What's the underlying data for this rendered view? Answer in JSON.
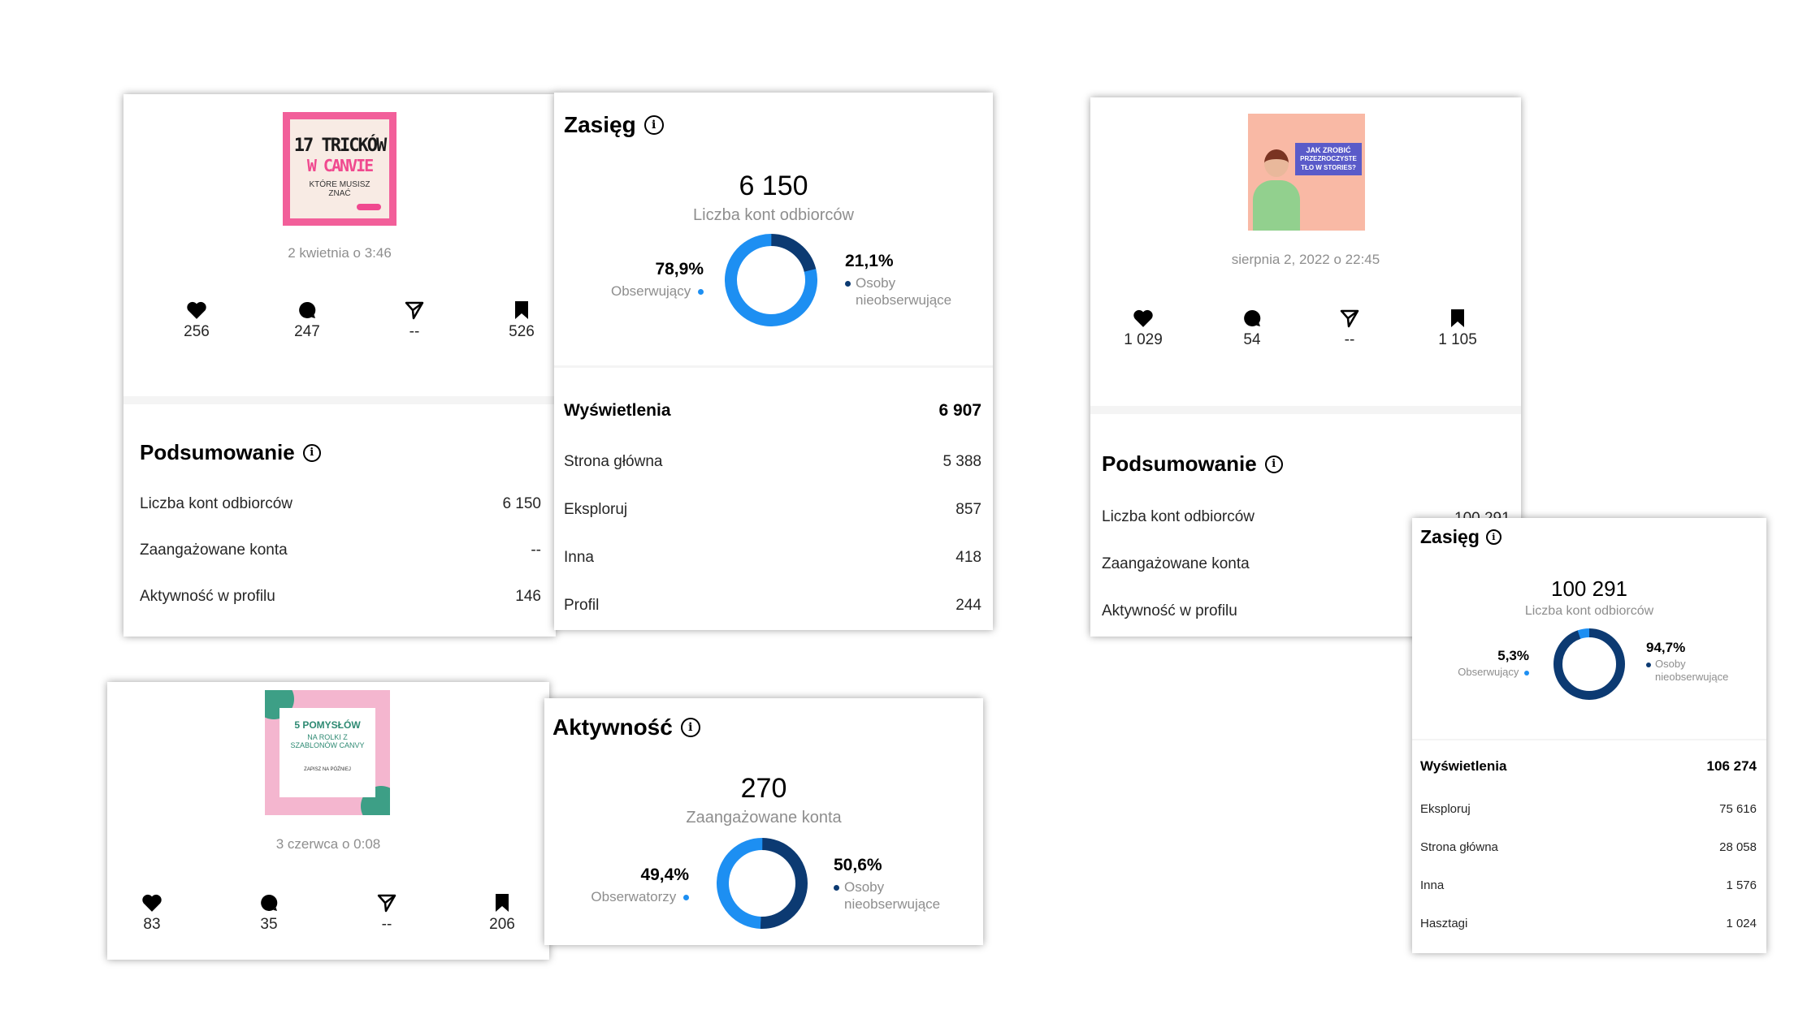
{
  "colors": {
    "light_blue": "#1d8ff2",
    "dark_blue": "#0c3a72"
  },
  "post1": {
    "thumb": {
      "line1": "17 TRICKÓW",
      "line2": "W CANVIE",
      "line3": "KTÓRE MUSISZ",
      "line4": "ZNAĆ"
    },
    "date": "2 kwietnia o 3:46",
    "stats": {
      "likes": "256",
      "comments": "247",
      "shares": "--",
      "saves": "526"
    },
    "summary": {
      "title": "Podsumowanie",
      "rows": [
        {
          "label": "Liczba kont odbiorców",
          "value": "6 150"
        },
        {
          "label": "Zaangażowane konta",
          "value": "--"
        },
        {
          "label": "Aktywność w profilu",
          "value": "146"
        }
      ]
    }
  },
  "reach1": {
    "title": "Zasięg",
    "total": "6 150",
    "total_label": "Liczba kont odbiorców",
    "followers_pct": "78,9%",
    "followers_label": "Obserwujący",
    "followers_fraction": 0.789,
    "nonfollowers_pct": "21,1%",
    "nonfollowers_label_1": "Osoby",
    "nonfollowers_label_2": "nieobserwujące",
    "views_label": "Wyświetlenia",
    "views_total": "6 907",
    "sources": [
      {
        "label": "Strona główna",
        "value": "5 388"
      },
      {
        "label": "Eksploruj",
        "value": "857"
      },
      {
        "label": "Inna",
        "value": "418"
      },
      {
        "label": "Profil",
        "value": "244"
      }
    ]
  },
  "post2": {
    "thumb": {
      "line1": "JAK ZROBIĆ",
      "line2": "PRZEZROCZYSTE",
      "line3": "TŁO W STORIES?"
    },
    "date": "sierpnia 2, 2022 o 22:45",
    "stats": {
      "likes": "1 029",
      "comments": "54",
      "shares": "--",
      "saves": "1 105"
    },
    "summary": {
      "title": "Podsumowanie",
      "partial_value": "100 291",
      "rows": [
        {
          "label": "Liczba kont odbiorców"
        },
        {
          "label": "Zaangażowane konta"
        },
        {
          "label": "Aktywność w profilu"
        }
      ]
    }
  },
  "reach2": {
    "title": "Zasięg",
    "total": "100 291",
    "total_label": "Liczba kont odbiorców",
    "followers_pct": "5,3%",
    "followers_label": "Obserwujący",
    "followers_fraction": 0.053,
    "nonfollowers_pct": "94,7%",
    "nonfollowers_label_1": "Osoby",
    "nonfollowers_label_2": "nieobserwujące",
    "views_label": "Wyświetlenia",
    "views_total": "106 274",
    "sources": [
      {
        "label": "Eksploruj",
        "value": "75 616"
      },
      {
        "label": "Strona główna",
        "value": "28 058"
      },
      {
        "label": "Inna",
        "value": "1 576"
      },
      {
        "label": "Hasztagi",
        "value": "1 024"
      }
    ]
  },
  "post3": {
    "thumb": {
      "line1": "5 POMYSŁÓW",
      "line2": "NA ROLKI Z",
      "line3": "SZABLONÓW CANVY",
      "line4": "ZAPISZ NA PÓŹNIEJ"
    },
    "date": "3 czerwca o 0:08",
    "stats": {
      "likes": "83",
      "comments": "35",
      "shares": "--",
      "saves": "206"
    }
  },
  "activity": {
    "title": "Aktywność",
    "total": "270",
    "total_label": "Zaangażowane konta",
    "followers_pct": "49,4%",
    "followers_label": "Obserwatorzy",
    "followers_fraction": 0.494,
    "nonfollowers_pct": "50,6%",
    "nonfollowers_label_1": "Osoby",
    "nonfollowers_label_2": "nieobserwujące"
  }
}
